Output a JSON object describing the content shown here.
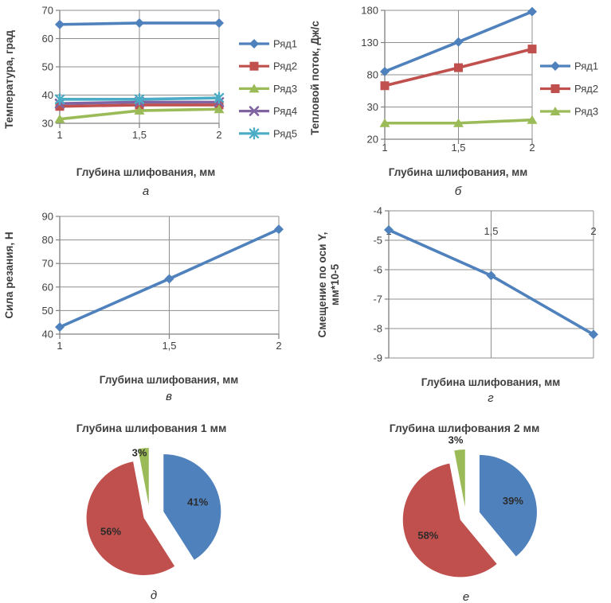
{
  "figure": {
    "shared_x_axis_label": "Глубина шлифования, мм",
    "shared_x_categories": [
      "1",
      "1,5",
      "2"
    ],
    "series_palette": [
      "#4F81BD",
      "#C0504D",
      "#9BBB59",
      "#8064A2",
      "#4BACC6"
    ],
    "grid_color": "#8F8F8F",
    "axis_color": "#808080",
    "text_color": "#3F3F3F"
  },
  "chart_data": [
    {
      "type": "line",
      "panel_letter": "а",
      "y_axis_label": "Температура, град",
      "x_axis_label": "Глубина шлифования, мм",
      "categories": [
        "1",
        "1,5",
        "2"
      ],
      "x_values": [
        1,
        1.5,
        2
      ],
      "y_ticks": [
        "70",
        "60",
        "50",
        "40",
        "30"
      ],
      "y_tick_values": [
        70,
        60,
        50,
        40,
        30
      ],
      "ylim": [
        30,
        70
      ],
      "grid": true,
      "x_labels_position": "bottom",
      "legend_position": "right",
      "series": [
        {
          "name": "Ряд1",
          "color": "#4F81BD",
          "marker": "diamond",
          "values": [
            65,
            65.5,
            65.5
          ]
        },
        {
          "name": "Ряд2",
          "color": "#C0504D",
          "marker": "square",
          "values": [
            36,
            36.5,
            36.5
          ]
        },
        {
          "name": "Ряд3",
          "color": "#9BBB59",
          "marker": "triangle",
          "values": [
            31.5,
            34.5,
            35
          ]
        },
        {
          "name": "Ряд4",
          "color": "#8064A2",
          "marker": "x",
          "values": [
            37,
            37.5,
            37.5
          ]
        },
        {
          "name": "Ряд5",
          "color": "#4BACC6",
          "marker": "star",
          "values": [
            38.5,
            38.5,
            39
          ]
        }
      ]
    },
    {
      "type": "line",
      "panel_letter": "б",
      "y_axis_label": "Тепловой поток, Дж/с",
      "x_axis_label": "Глубина шлифования, мм",
      "categories": [
        "1",
        "1,5",
        "2"
      ],
      "x_values": [
        1,
        1.5,
        2
      ],
      "y_ticks": [
        "180",
        "130",
        "80",
        "30",
        "20"
      ],
      "y_tick_values": [
        180,
        130,
        80,
        30,
        20
      ],
      "y_axis_note": "tick labels evenly spaced although values are non-uniform",
      "ylim": [
        20,
        180
      ],
      "grid": true,
      "x_labels_position": "bottom",
      "legend_position": "right",
      "series": [
        {
          "name": "Ряд1",
          "color": "#4F81BD",
          "marker": "diamond",
          "values": [
            85,
            131,
            178
          ]
        },
        {
          "name": "Ряд2",
          "color": "#C0504D",
          "marker": "square",
          "values": [
            63,
            91,
            120
          ]
        },
        {
          "name": "Ряд3",
          "color": "#9BBB59",
          "marker": "triangle",
          "values": [
            25,
            25,
            26
          ]
        }
      ]
    },
    {
      "type": "line",
      "panel_letter": "в",
      "y_axis_label": "Сила резания, Н",
      "x_axis_label": "Глубина шлифования, мм",
      "categories": [
        "1",
        "1,5",
        "2"
      ],
      "x_values": [
        1,
        1.5,
        2
      ],
      "y_ticks": [
        "90",
        "80",
        "70",
        "60",
        "50",
        "40"
      ],
      "y_tick_values": [
        90,
        80,
        70,
        60,
        50,
        40
      ],
      "ylim": [
        40,
        90
      ],
      "grid": true,
      "x_labels_position": "bottom",
      "legend_position": "none",
      "series": [
        {
          "name": "Ряд1",
          "color": "#4F81BD",
          "marker": "diamond",
          "values": [
            43,
            63.5,
            84.5
          ]
        }
      ]
    },
    {
      "type": "line",
      "panel_letter": "г",
      "y_axis_label": "Смещение по оси Y, мм*10-5",
      "y_axis_label_lines": [
        "Смещение по оси Y,",
        "мм*10-5"
      ],
      "x_axis_label": "Глубина шлифования, мм",
      "categories": [
        "1",
        "1,5",
        "2"
      ],
      "x_values": [
        1,
        1.5,
        2
      ],
      "y_ticks": [
        "-4",
        "-5",
        "-6",
        "-7",
        "-8",
        "-9"
      ],
      "y_tick_values": [
        -4,
        -5,
        -6,
        -7,
        -8,
        -9
      ],
      "ylim": [
        -9,
        -4
      ],
      "grid": true,
      "x_labels_position": "top",
      "legend_position": "none",
      "series": [
        {
          "name": "Ряд1",
          "color": "#4F81BD",
          "marker": "diamond",
          "values": [
            -4.65,
            -6.2,
            -8.2
          ]
        }
      ]
    },
    {
      "type": "pie",
      "panel_letter": "д",
      "title": "Глубина шлифования 1 мм",
      "direction": "clockwise",
      "start_angle_deg": 0,
      "exploded": true,
      "slices": [
        {
          "label": "41%",
          "value": 41,
          "color": "#4F81BD"
        },
        {
          "label": "56%",
          "value": 56,
          "color": "#C0504D"
        },
        {
          "label": "3%",
          "value": 3,
          "color": "#9BBB59"
        }
      ]
    },
    {
      "type": "pie",
      "panel_letter": "е",
      "title": "Глубина шлифования 2 мм",
      "direction": "clockwise",
      "start_angle_deg": 0,
      "exploded": true,
      "slices": [
        {
          "label": "39%",
          "value": 39,
          "color": "#4F81BD"
        },
        {
          "label": "58%",
          "value": 58,
          "color": "#C0504D"
        },
        {
          "label": "3%",
          "value": 3,
          "color": "#9BBB59"
        }
      ]
    }
  ]
}
